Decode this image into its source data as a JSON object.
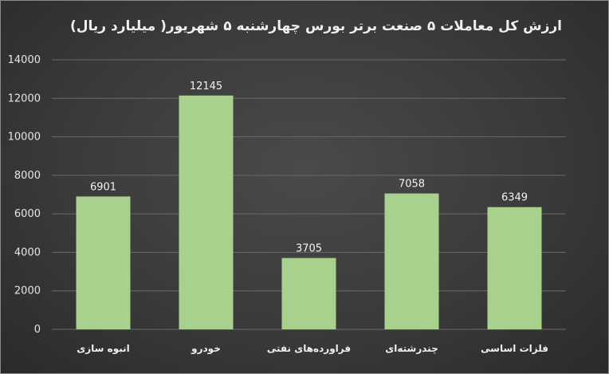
{
  "chart_data": {
    "type": "bar",
    "title": "ارزش کل معاملات ۵ صنعت برتر بورس چهارشنبه ۵ شهریور( میلیارد ریال)",
    "xlabel": "",
    "ylabel": "",
    "categories": [
      "انبوه سازی",
      "خودرو",
      "فراورده‌های نفتی",
      "چندرشته‌ای",
      "فلزات اساسی"
    ],
    "values": [
      6901,
      12145,
      3705,
      7058,
      6349
    ],
    "data_labels": [
      "6901",
      "12145",
      "3705",
      "7058",
      "6349"
    ],
    "yticks": [
      "0",
      "2000",
      "4000",
      "6000",
      "8000",
      "10000",
      "12000",
      "14000"
    ],
    "ylim": [
      0,
      14000
    ],
    "grid": true,
    "legend": "none",
    "colors": {
      "bar": "#a9d18e",
      "grid": "#6a6a6a",
      "text": "#efefef"
    }
  }
}
